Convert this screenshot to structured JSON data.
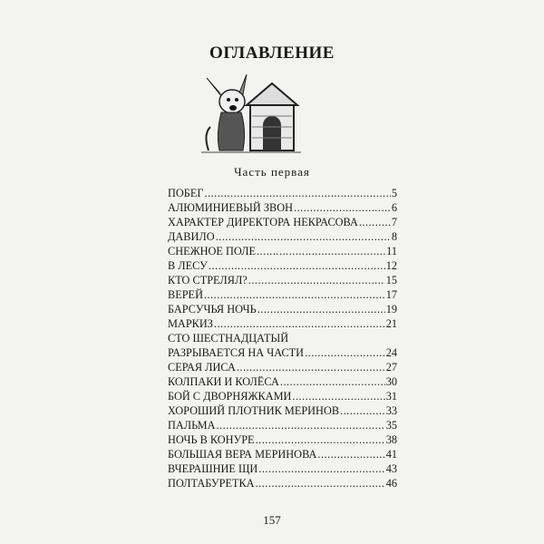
{
  "title": "ОГЛАВЛЕНИЕ",
  "illustration": "dog-and-doghouse-illustration",
  "part_heading": "Часть первая",
  "toc": [
    {
      "title": "ПОБЕГ",
      "page": "5"
    },
    {
      "title": "АЛЮМИНИЕВЫЙ ЗВОН",
      "page": "6"
    },
    {
      "title": "ХАРАКТЕР ДИРЕКТОРА НЕКРАСОВА",
      "page": "7"
    },
    {
      "title": "ДАВИЛО",
      "page": "8"
    },
    {
      "title": "СНЕЖНОЕ ПОЛЕ",
      "page": "11"
    },
    {
      "title": "В ЛЕСУ",
      "page": "12"
    },
    {
      "title": "КТО СТРЕЛЯЛ?",
      "page": "15"
    },
    {
      "title": "ВЕРЕЙ",
      "page": "17"
    },
    {
      "title": "БАРСУЧЬЯ НОЧЬ",
      "page": "19"
    },
    {
      "title": "МАРКИЗ",
      "page": "21"
    },
    {
      "title": "СТО ШЕСТНАДЦАТЫЙ",
      "page": ""
    },
    {
      "title": "РАЗРЫВАЕТСЯ НА ЧАСТИ",
      "page": "24"
    },
    {
      "title": "СЕРАЯ ЛИСА",
      "page": "27"
    },
    {
      "title": "КОЛПАКИ И КОЛЁСА",
      "page": "30"
    },
    {
      "title": "БОЙ С ДВОРНЯЖКАМИ",
      "page": "31"
    },
    {
      "title": "ХОРОШИЙ ПЛОТНИК МЕРИНОВ",
      "page": "33"
    },
    {
      "title": "ПАЛЬМА",
      "page": "35"
    },
    {
      "title": "НОЧЬ В КОНУРЕ",
      "page": "38"
    },
    {
      "title": "БОЛЬШАЯ ВЕРА МЕРИНОВА",
      "page": "41"
    },
    {
      "title": "ВЧЕРАШНИЕ ЩИ",
      "page": "43"
    },
    {
      "title": "ПОЛТАБУРЕТКА",
      "page": "46"
    }
  ],
  "page_number": "157"
}
